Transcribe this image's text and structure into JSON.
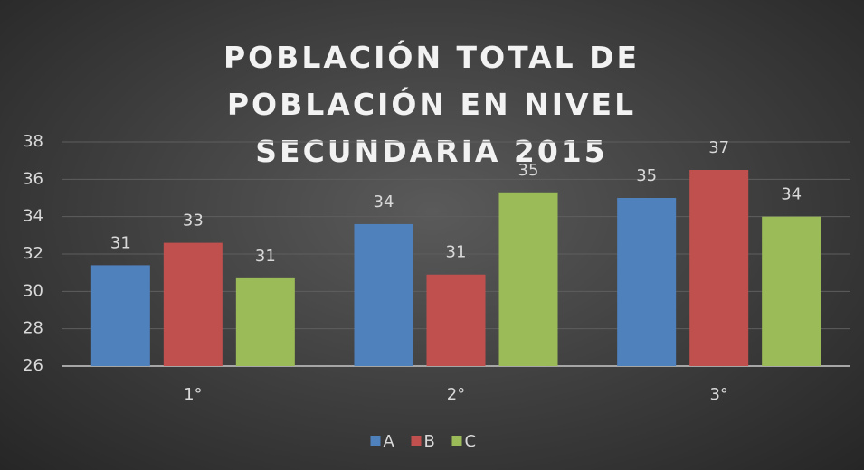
{
  "chart_data": {
    "type": "bar",
    "title": "POBLACIÓN TOTAL DE POBLACIÓN EN NIVEL SECUNDARIA 2015",
    "categories": [
      "1°",
      "2°",
      "3°"
    ],
    "series": [
      {
        "name": "A",
        "color": "#4f81bd",
        "values": [
          31.4,
          33.6,
          35.0
        ],
        "value_labels": [
          "31",
          "34",
          "35"
        ]
      },
      {
        "name": "B",
        "color": "#c0504d",
        "values": [
          32.6,
          30.9,
          36.5
        ],
        "value_labels": [
          "33",
          "31",
          "37"
        ]
      },
      {
        "name": "C",
        "color": "#9bbb59",
        "values": [
          30.7,
          35.3,
          34.0
        ],
        "value_labels": [
          "31",
          "35",
          "34"
        ]
      }
    ],
    "ylim": [
      26,
      38
    ],
    "yticks": [
      26,
      28,
      30,
      32,
      34,
      36,
      38
    ],
    "grid": true,
    "legend": "bottom"
  }
}
